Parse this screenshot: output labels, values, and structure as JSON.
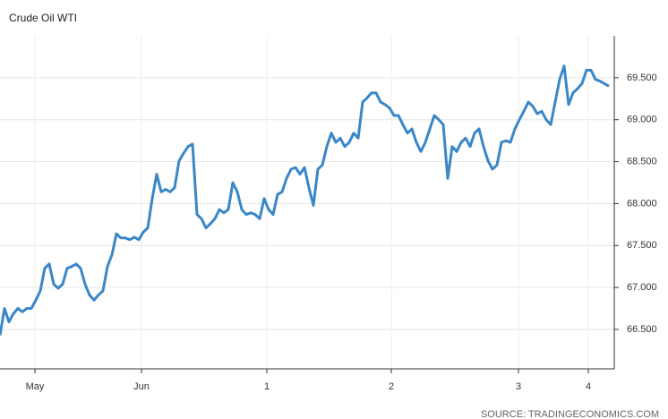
{
  "chart_data": {
    "type": "line",
    "title": "Crude Oil WTI",
    "source": "SOURCE: TRADINGECONOMICS.COM",
    "color": "#3a87c8",
    "grid": true,
    "y_axis_side": "right",
    "xlim": [
      0,
      137.2
    ],
    "xticks": [
      {
        "value": 7.8,
        "label": "May"
      },
      {
        "value": 31.6,
        "label": "Jun"
      },
      {
        "value": 59.6,
        "label": "1"
      },
      {
        "value": 87.4,
        "label": "2"
      },
      {
        "value": 115.8,
        "label": "3"
      },
      {
        "value": 131.4,
        "label": "4"
      }
    ],
    "ylim": [
      66.03,
      70.0
    ],
    "yticks": [
      {
        "value": 66.5,
        "label": "66.500"
      },
      {
        "value": 67.0,
        "label": "67.000"
      },
      {
        "value": 67.5,
        "label": "67.500"
      },
      {
        "value": 68.0,
        "label": "68.000"
      },
      {
        "value": 68.5,
        "label": "68.500"
      },
      {
        "value": 69.0,
        "label": "69.000"
      },
      {
        "value": 69.5,
        "label": "69.500"
      }
    ],
    "values": [
      66.43,
      66.75,
      66.59,
      66.69,
      66.75,
      66.71,
      66.75,
      66.75,
      66.85,
      66.96,
      67.23,
      67.28,
      67.04,
      66.99,
      67.04,
      67.23,
      67.25,
      67.28,
      67.23,
      67.04,
      66.91,
      66.85,
      66.91,
      66.96,
      67.25,
      67.39,
      67.64,
      67.59,
      67.59,
      67.57,
      67.6,
      67.57,
      67.66,
      67.71,
      68.06,
      68.35,
      68.14,
      68.17,
      68.14,
      68.19,
      68.51,
      68.6,
      68.68,
      68.71,
      67.87,
      67.82,
      67.71,
      67.76,
      67.82,
      67.93,
      67.89,
      67.93,
      68.25,
      68.14,
      67.93,
      67.87,
      67.89,
      67.87,
      67.82,
      68.06,
      67.93,
      67.87,
      68.11,
      68.14,
      68.3,
      68.41,
      68.43,
      68.35,
      68.43,
      68.19,
      67.98,
      68.41,
      68.46,
      68.68,
      68.84,
      68.73,
      68.78,
      68.68,
      68.73,
      68.84,
      68.78,
      69.21,
      69.26,
      69.32,
      69.32,
      69.21,
      69.18,
      69.14,
      69.05,
      69.05,
      68.94,
      68.84,
      68.89,
      68.73,
      68.62,
      68.73,
      68.89,
      69.05,
      69.0,
      68.94,
      68.3,
      68.68,
      68.62,
      68.73,
      68.78,
      68.68,
      68.84,
      68.89,
      68.68,
      68.51,
      68.41,
      68.46,
      68.73,
      68.75,
      68.73,
      68.89,
      69.0,
      69.1,
      69.21,
      69.16,
      69.07,
      69.1,
      69.0,
      68.94,
      69.21,
      69.48,
      69.64,
      69.18,
      69.32,
      69.37,
      69.43,
      69.59,
      69.59,
      69.48,
      69.46,
      69.43,
      69.4
    ]
  }
}
